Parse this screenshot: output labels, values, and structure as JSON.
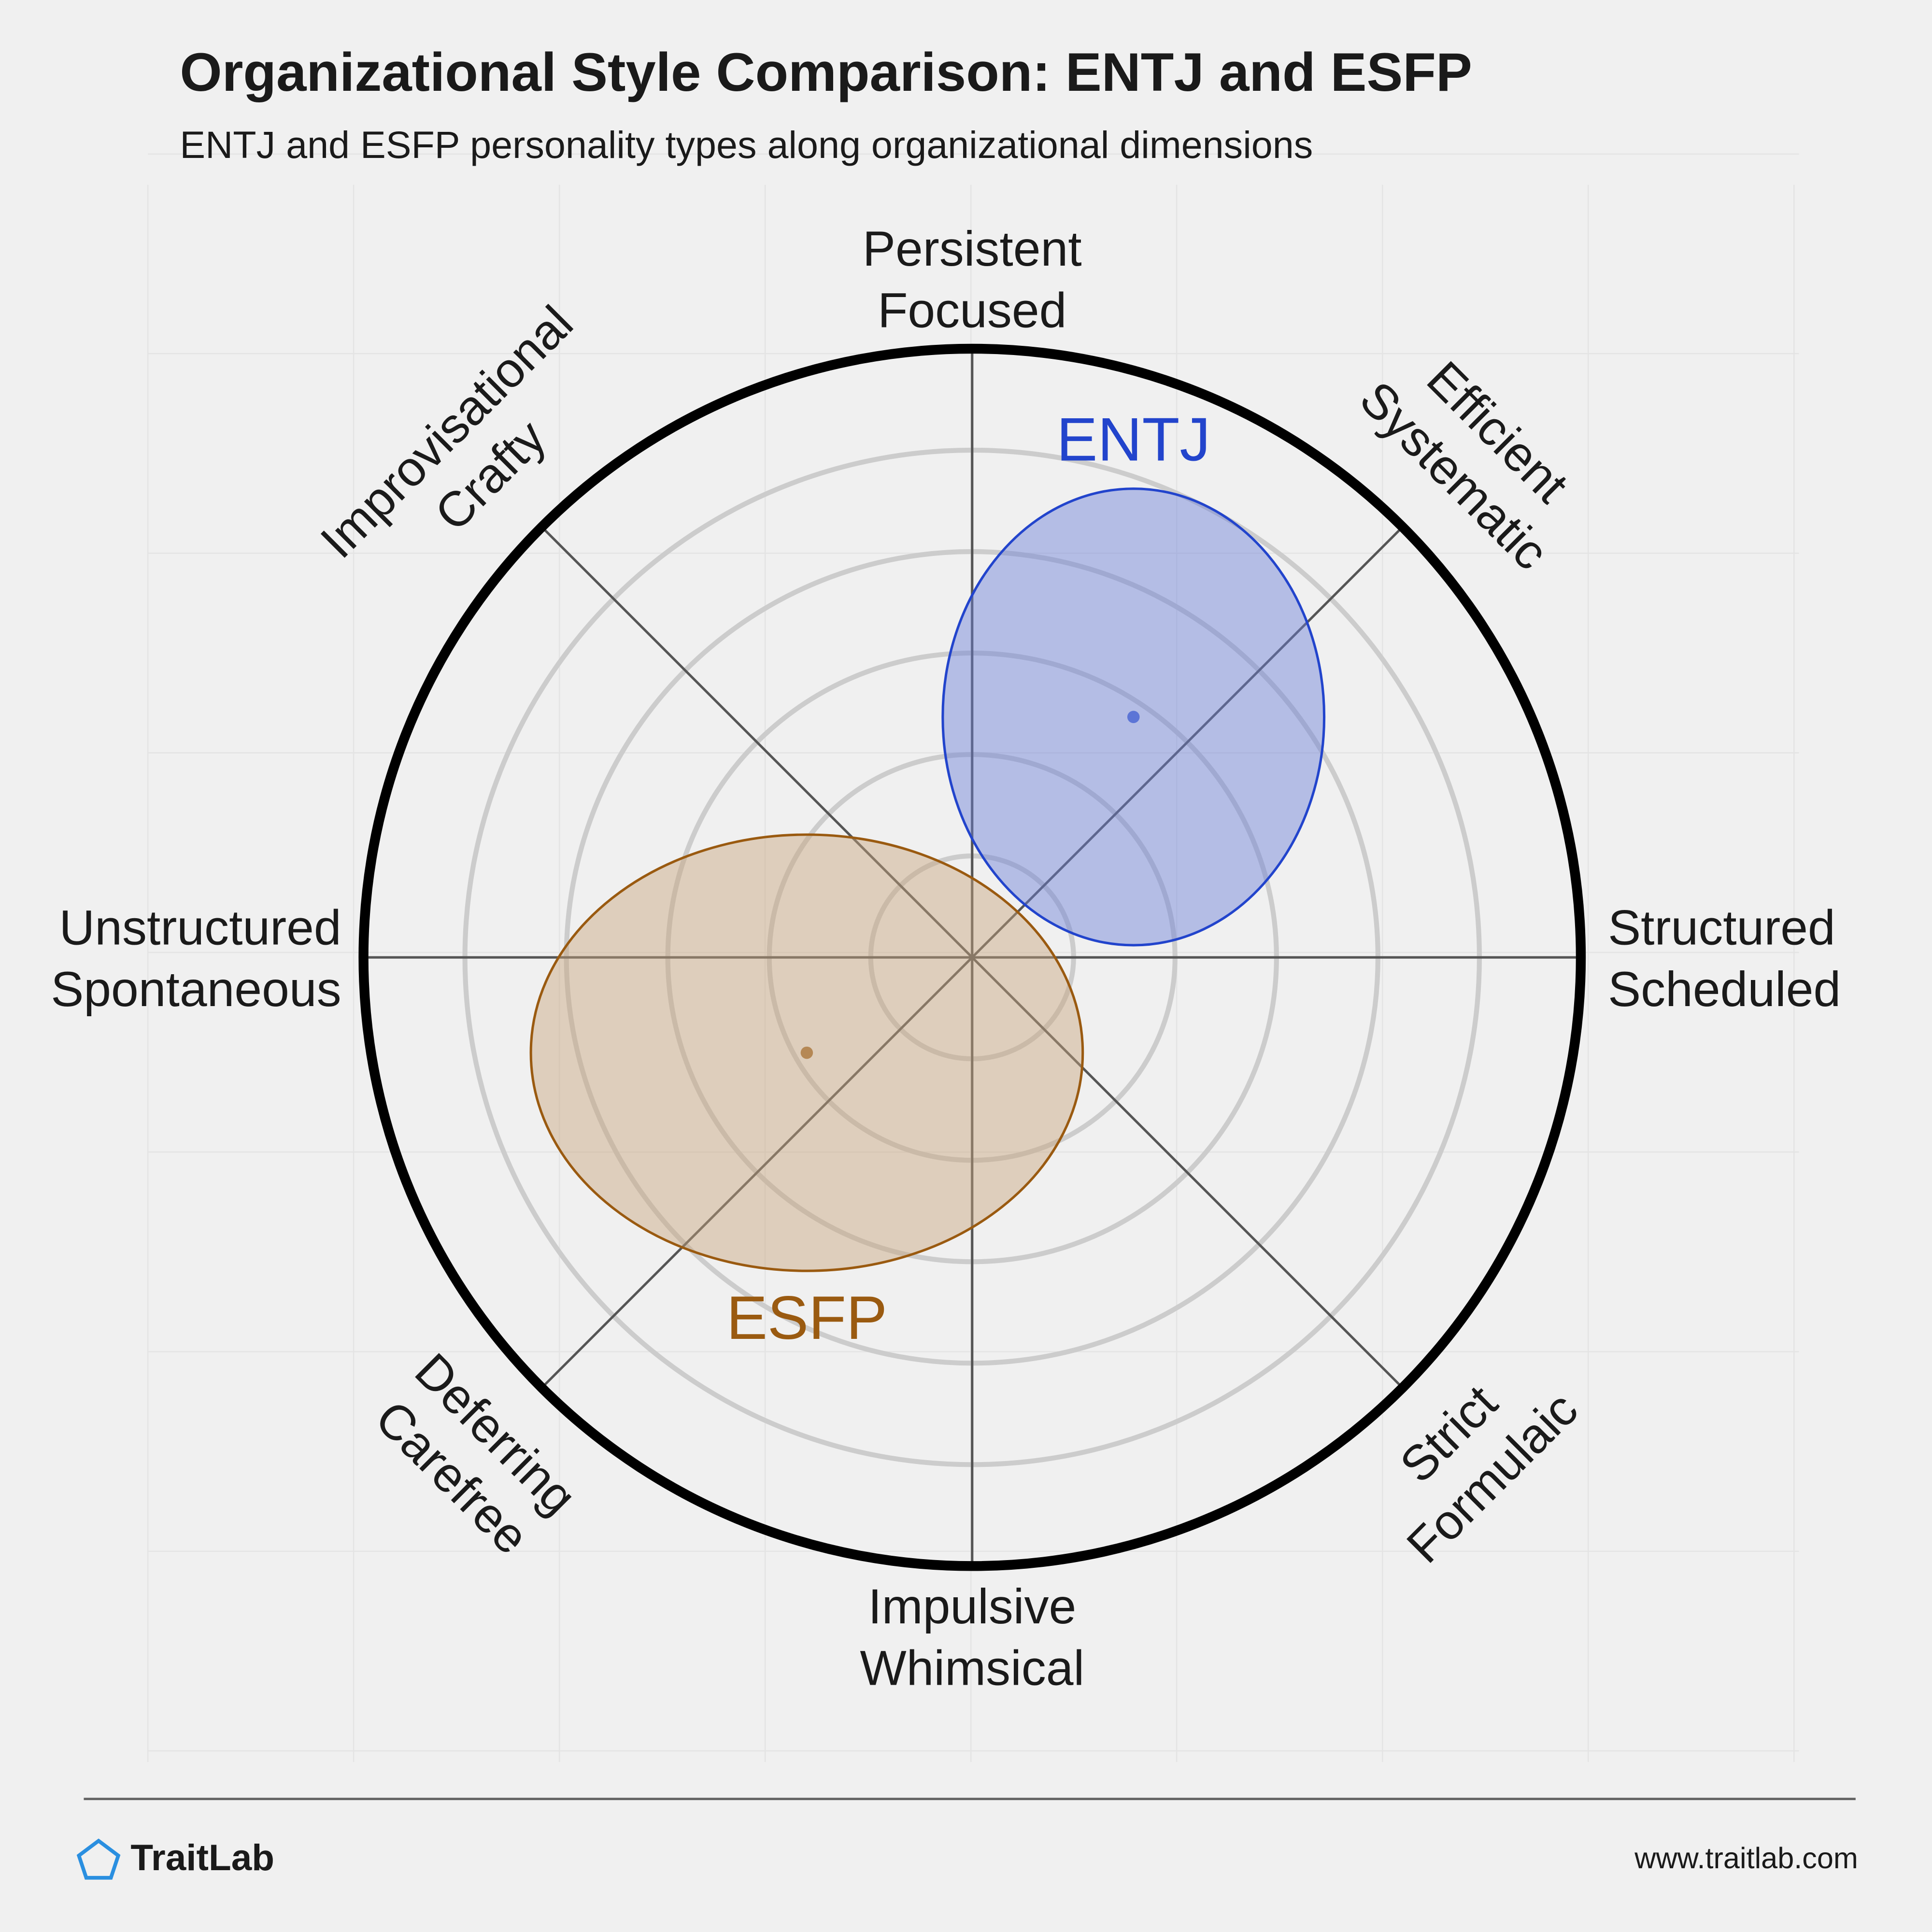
{
  "chart_data": {
    "type": "polar-ellipse",
    "title": "Organizational Style Comparison: ENTJ and ESFP",
    "subtitle": "ENTJ and ESFP personality types along organizational dimensions",
    "rlim": [
      0,
      6
    ],
    "rticks": [
      1,
      2,
      3,
      4,
      5
    ],
    "axes": [
      [
        "Persistent",
        "Focused"
      ],
      [
        "Efficient",
        "Systematic"
      ],
      [
        "Structured",
        "Scheduled"
      ],
      [
        "Strict",
        "Formulaic"
      ],
      [
        "Impulsive",
        "Whimsical"
      ],
      [
        "Deferring",
        "Carefree"
      ],
      [
        "Unstructured",
        "Spontaneous"
      ],
      [
        "Improvisational",
        "Crafty"
      ]
    ],
    "series": [
      {
        "name": "ENTJ",
        "color": "#2244cc",
        "fill": "#6b7fd6",
        "x": 1.59,
        "y": 2.37,
        "rx": 1.88,
        "ry": 2.25
      },
      {
        "name": "ESFP",
        "color": "#9a5a10",
        "fill": "#c7a47c",
        "x": -1.63,
        "y": -0.94,
        "rx": 2.72,
        "ry": 2.15
      }
    ],
    "footer": {
      "brand": "TraitLab",
      "url": "www.traitlab.com"
    }
  }
}
